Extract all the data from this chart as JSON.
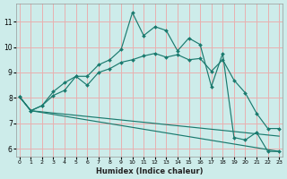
{
  "xlabel": "Humidex (Indice chaleur)",
  "bg_color": "#cdecea",
  "grid_color": "#e8b0b0",
  "line_color": "#1a7a6e",
  "ylim": [
    5.7,
    11.7
  ],
  "xlim": [
    -0.3,
    23.3
  ],
  "yticks": [
    6,
    7,
    8,
    9,
    10,
    11
  ],
  "xticks": [
    0,
    1,
    2,
    3,
    4,
    5,
    6,
    7,
    8,
    9,
    10,
    11,
    12,
    13,
    14,
    15,
    16,
    17,
    18,
    19,
    20,
    21,
    22,
    23
  ],
  "series": [
    {
      "x": [
        0,
        1,
        2,
        3,
        4,
        5,
        6,
        7,
        8,
        9,
        10,
        11,
        12,
        13,
        14,
        15,
        16,
        17,
        18,
        19,
        20,
        21,
        22,
        23
      ],
      "y": [
        8.05,
        7.5,
        7.7,
        8.25,
        8.6,
        8.85,
        8.85,
        9.3,
        9.5,
        9.9,
        11.35,
        10.45,
        10.8,
        10.65,
        9.85,
        10.35,
        10.1,
        8.45,
        9.75,
        6.45,
        6.35,
        6.65,
        5.9,
        5.9
      ],
      "markers": true
    },
    {
      "x": [
        0,
        1,
        2,
        3,
        4,
        5,
        6,
        7,
        8,
        9,
        10,
        11,
        12,
        13,
        14,
        15,
        16,
        17,
        18,
        19,
        20,
        21,
        22,
        23
      ],
      "y": [
        8.05,
        7.5,
        7.7,
        8.1,
        8.3,
        8.85,
        8.5,
        9.0,
        9.15,
        9.4,
        9.5,
        9.65,
        9.75,
        9.6,
        9.7,
        9.5,
        9.55,
        9.05,
        9.5,
        8.7,
        8.2,
        7.4,
        6.8,
        6.8
      ],
      "markers": true
    },
    {
      "x": [
        0,
        1,
        23
      ],
      "y": [
        8.05,
        7.5,
        6.5
      ],
      "markers": false
    },
    {
      "x": [
        0,
        1,
        23
      ],
      "y": [
        8.05,
        7.5,
        5.9
      ],
      "markers": false
    }
  ]
}
